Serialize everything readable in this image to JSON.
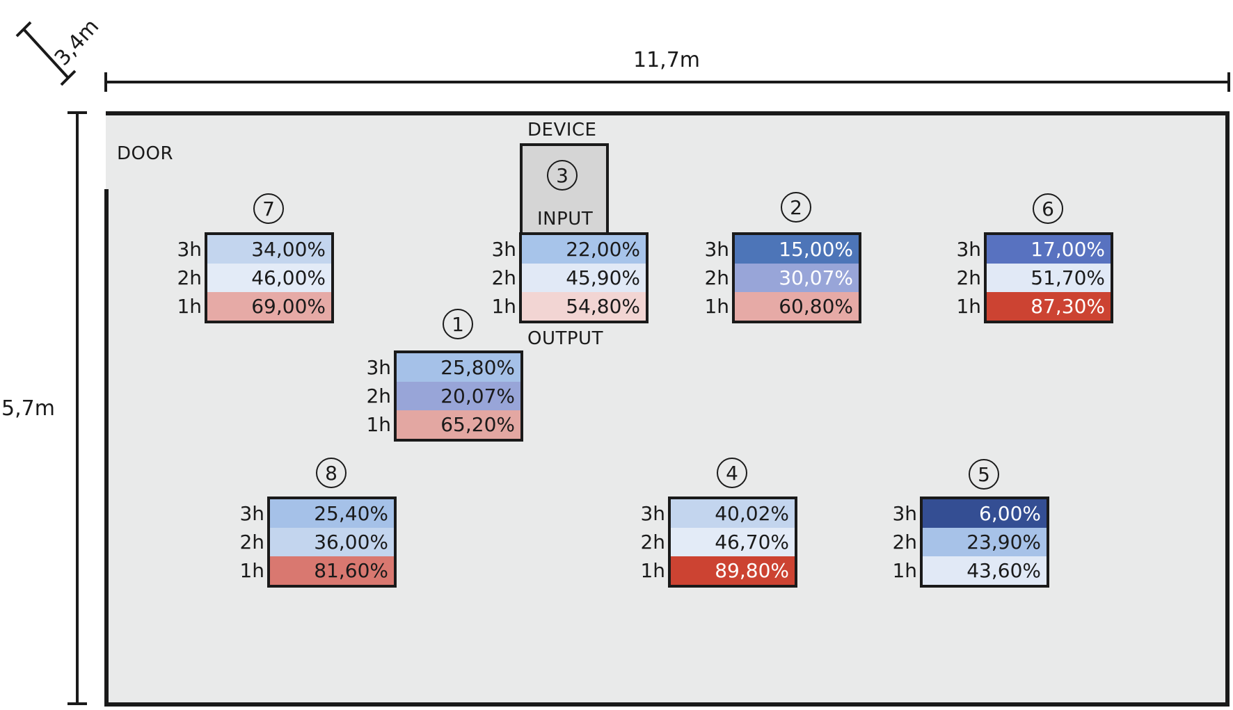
{
  "dimensions": {
    "depth": "3,4m",
    "width": "11,7m",
    "height": "5,7m"
  },
  "labels": {
    "door": "DOOR",
    "device": "DEVICE",
    "input": "INPUT",
    "output": "OUTPUT"
  },
  "row_labels": [
    "3h",
    "2h",
    "1h"
  ],
  "device_sensor_number": "3",
  "sensors": [
    {
      "id": "7",
      "values": [
        "34,00%",
        "46,00%",
        "69,00%"
      ],
      "colors": [
        "#c3d5ee",
        "#e3ebf7",
        "#e6aaa6"
      ],
      "text_colors": [
        "#1a1a1a",
        "#1a1a1a",
        "#1a1a1a"
      ]
    },
    {
      "id": "3",
      "values": [
        "22,00%",
        "45,90%",
        "54,80%"
      ],
      "colors": [
        "#a7c4ea",
        "#e1e9f6",
        "#f2d5d3"
      ],
      "text_colors": [
        "#1a1a1a",
        "#1a1a1a",
        "#1a1a1a"
      ]
    },
    {
      "id": "2",
      "values": [
        "15,00%",
        "30,07%",
        "60,80%"
      ],
      "colors": [
        "#4d75b8",
        "#98a5d8",
        "#e6aaa6"
      ],
      "text_colors": [
        "#ffffff",
        "#ffffff",
        "#1a1a1a"
      ]
    },
    {
      "id": "6",
      "values": [
        "17,00%",
        "51,70%",
        "87,30%"
      ],
      "colors": [
        "#5872c0",
        "#e1e9f6",
        "#cc4332"
      ],
      "text_colors": [
        "#ffffff",
        "#1a1a1a",
        "#ffffff"
      ]
    },
    {
      "id": "1",
      "values": [
        "25,80%",
        "20,07%",
        "65,20%"
      ],
      "colors": [
        "#a5c1e8",
        "#98a5d8",
        "#e3a7a2"
      ],
      "text_colors": [
        "#1a1a1a",
        "#1a1a1a",
        "#1a1a1a"
      ]
    },
    {
      "id": "8",
      "values": [
        "25,40%",
        "36,00%",
        "81,60%"
      ],
      "colors": [
        "#a5c1e8",
        "#c3d5ee",
        "#d97870"
      ],
      "text_colors": [
        "#1a1a1a",
        "#1a1a1a",
        "#1a1a1a"
      ]
    },
    {
      "id": "4",
      "values": [
        "40,02%",
        "46,70%",
        "89,80%"
      ],
      "colors": [
        "#c3d5ee",
        "#e3ebf7",
        "#cc4332"
      ],
      "text_colors": [
        "#1a1a1a",
        "#1a1a1a",
        "#ffffff"
      ]
    },
    {
      "id": "5",
      "values": [
        "6,00%",
        "23,90%",
        "43,60%"
      ],
      "colors": [
        "#344e93",
        "#a7c2e8",
        "#e1e9f6"
      ],
      "text_colors": [
        "#ffffff",
        "#1a1a1a",
        "#1a1a1a"
      ]
    }
  ]
}
